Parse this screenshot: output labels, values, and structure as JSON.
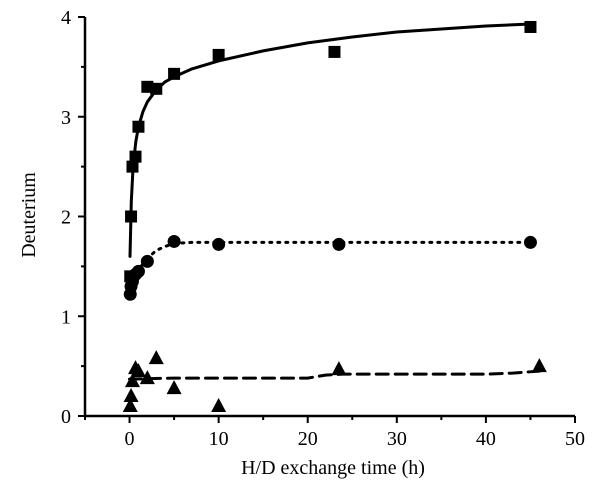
{
  "chart_data": {
    "type": "scatter",
    "title": "",
    "xlabel": "H/D exchange time (h)",
    "ylabel": "Deuterium",
    "xlim": [
      -5,
      50
    ],
    "ylim": [
      0,
      4
    ],
    "xticks": [
      0,
      10,
      20,
      30,
      40,
      50
    ],
    "yticks": [
      0,
      1,
      2,
      3,
      4
    ],
    "xtick_labels": [
      "0",
      "10",
      "20",
      "30",
      "40",
      "50"
    ],
    "ytick_labels": [
      "0",
      "1",
      "2",
      "3",
      "4"
    ],
    "grid": false,
    "legend": "none",
    "series": [
      {
        "marker": "square",
        "color": "#000000",
        "points": [
          [
            0.08,
            1.4
          ],
          [
            0.17,
            2.0
          ],
          [
            0.33,
            2.5
          ],
          [
            0.67,
            2.6
          ],
          [
            1.0,
            2.9
          ],
          [
            2.0,
            3.3
          ],
          [
            3.0,
            3.28
          ],
          [
            5.0,
            3.43
          ],
          [
            10.0,
            3.62
          ],
          [
            23.0,
            3.65
          ],
          [
            45.0,
            3.9
          ]
        ],
        "fit_line": {
          "style": "solid",
          "points": [
            [
              0.05,
              1.6
            ],
            [
              0.2,
              2.15
            ],
            [
              0.4,
              2.5
            ],
            [
              0.7,
              2.75
            ],
            [
              1.0,
              2.9
            ],
            [
              1.5,
              3.05
            ],
            [
              2.0,
              3.15
            ],
            [
              3.0,
              3.27
            ],
            [
              4.0,
              3.35
            ],
            [
              5.0,
              3.4
            ],
            [
              7.0,
              3.48
            ],
            [
              10.0,
              3.56
            ],
            [
              15.0,
              3.66
            ],
            [
              20.0,
              3.74
            ],
            [
              25.0,
              3.8
            ],
            [
              30.0,
              3.85
            ],
            [
              35.0,
              3.88
            ],
            [
              40.0,
              3.91
            ],
            [
              45.0,
              3.93
            ]
          ]
        }
      },
      {
        "marker": "circle",
        "color": "#000000",
        "points": [
          [
            0.08,
            1.22
          ],
          [
            0.17,
            1.3
          ],
          [
            0.33,
            1.35
          ],
          [
            0.67,
            1.42
          ],
          [
            1.0,
            1.45
          ],
          [
            2.0,
            1.55
          ],
          [
            5.0,
            1.75
          ],
          [
            10.0,
            1.72
          ],
          [
            23.5,
            1.72
          ],
          [
            45.0,
            1.74
          ]
        ],
        "fit_line": {
          "style": "dotted",
          "points": [
            [
              0.05,
              1.3
            ],
            [
              0.5,
              1.4
            ],
            [
              1.0,
              1.47
            ],
            [
              2.0,
              1.58
            ],
            [
              3.0,
              1.66
            ],
            [
              4.0,
              1.7
            ],
            [
              5.0,
              1.73
            ],
            [
              7.0,
              1.74
            ],
            [
              10.0,
              1.74
            ],
            [
              45.0,
              1.74
            ]
          ]
        }
      },
      {
        "marker": "triangle",
        "color": "#000000",
        "points": [
          [
            0.08,
            0.1
          ],
          [
            0.17,
            0.2
          ],
          [
            0.33,
            0.35
          ],
          [
            0.67,
            0.48
          ],
          [
            1.0,
            0.45
          ],
          [
            2.0,
            0.38
          ],
          [
            3.0,
            0.58
          ],
          [
            5.0,
            0.28
          ],
          [
            10.0,
            0.1
          ],
          [
            23.5,
            0.47
          ],
          [
            46.0,
            0.5
          ]
        ],
        "fit_line": {
          "style": "dashed",
          "points": [
            [
              0.0,
              0.37
            ],
            [
              5.0,
              0.38
            ],
            [
              15.0,
              0.38
            ],
            [
              20.0,
              0.38
            ],
            [
              22.0,
              0.41
            ],
            [
              24.0,
              0.42
            ],
            [
              30.0,
              0.42
            ],
            [
              35.0,
              0.42
            ],
            [
              40.0,
              0.42
            ],
            [
              43.0,
              0.43
            ],
            [
              46.0,
              0.45
            ]
          ]
        }
      }
    ]
  }
}
